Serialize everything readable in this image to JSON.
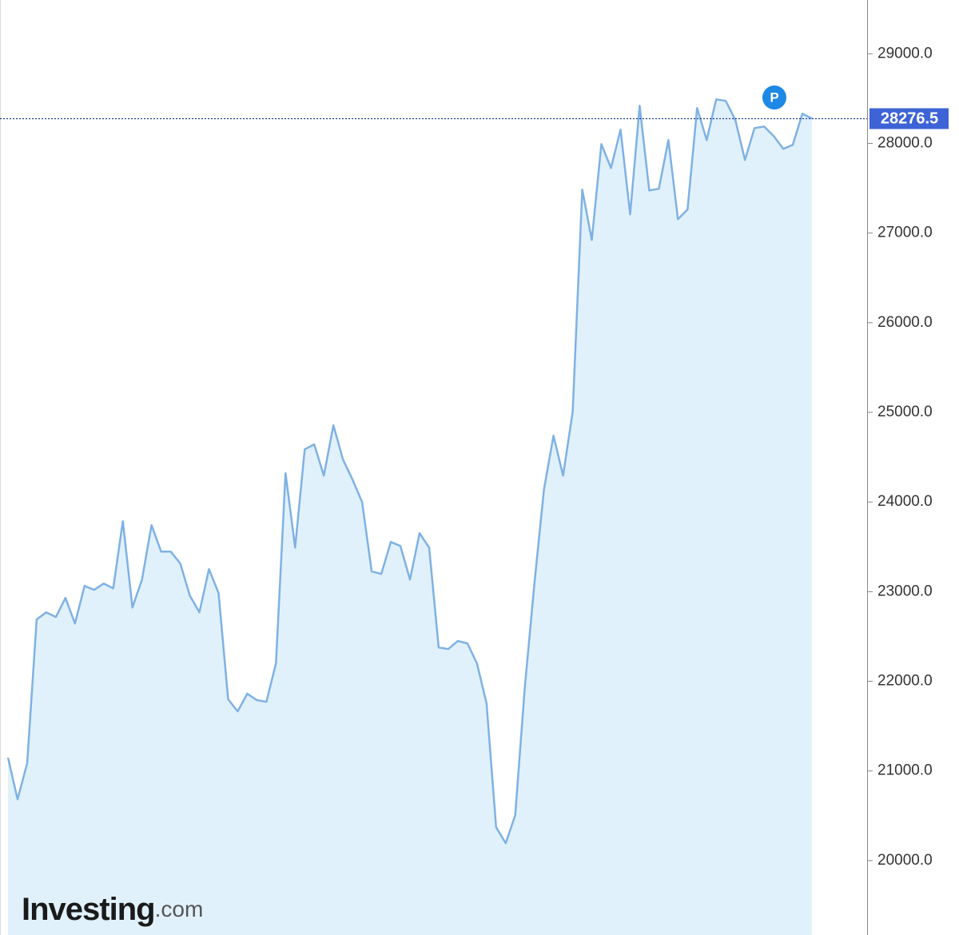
{
  "chart_data": {
    "type": "area",
    "logo": "Investing",
    "logo_suffix": ".com",
    "marker_label": "P",
    "color": "#7fb1e4",
    "fill": "#e1f1fb",
    "last_price": 28276.5,
    "values": [
      21148,
      20684,
      21086,
      22690,
      22770,
      22717,
      22930,
      22645,
      23064,
      23020,
      23091,
      23037,
      23786,
      22823,
      23135,
      23741,
      23447,
      23447,
      23314,
      22957,
      22770,
      23251,
      22984,
      21799,
      21665,
      21861,
      21790,
      21772,
      22200,
      24321,
      23492,
      24588,
      24643,
      24294,
      24856,
      24472,
      24250,
      24000,
      23225,
      23198,
      23554,
      23510,
      23135,
      23652,
      23492,
      22378,
      22360,
      22450,
      22423,
      22200,
      21754,
      20372,
      20194,
      20506,
      21932,
      23091,
      24143,
      24740,
      24294,
      25007,
      27485,
      26923,
      27993,
      27725,
      28153,
      27209,
      28421,
      27476,
      27494,
      28037,
      27155,
      27262,
      28394,
      28037,
      28492,
      28474,
      28260,
      27815,
      28171,
      28189,
      28082,
      27939,
      27984,
      28332,
      28278
    ],
    "ylim": [
      19170,
      29600
    ],
    "yticks": [
      {
        "value": 20000,
        "label": "20000.0"
      },
      {
        "value": 21000,
        "label": "21000.0"
      },
      {
        "value": 22000,
        "label": "22000.0"
      },
      {
        "value": 23000,
        "label": "23000.0"
      },
      {
        "value": 24000,
        "label": "24000.0"
      },
      {
        "value": 25000,
        "label": "25000.0"
      },
      {
        "value": 26000,
        "label": "26000.0"
      },
      {
        "value": 27000,
        "label": "27000.0"
      },
      {
        "value": 28000,
        "label": "28000.0"
      },
      {
        "value": 29000,
        "label": "29000.0"
      }
    ],
    "y_axis_side": "right"
  }
}
